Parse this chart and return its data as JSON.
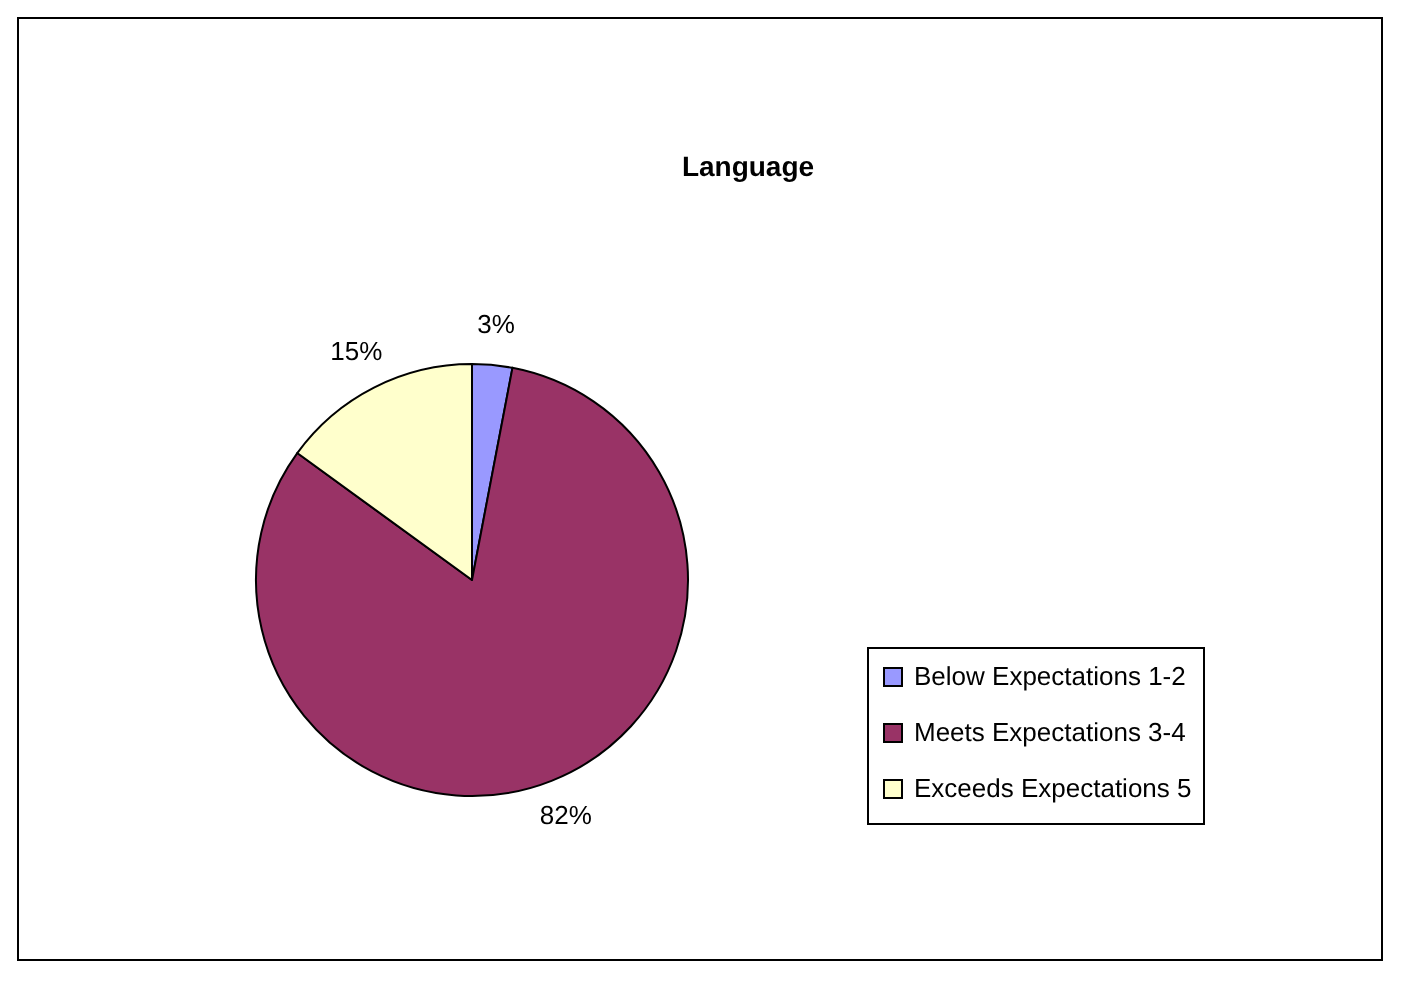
{
  "chart_data": {
    "type": "pie",
    "title": "Language",
    "categories": [
      "Below Expectations 1-2",
      "Meets Expectations 3-4",
      "Exceeds Expectations 5"
    ],
    "values": [
      3,
      82,
      15
    ],
    "colors": [
      "#9999ff",
      "#993366",
      "#ffffcc"
    ],
    "value_labels": [
      "3%",
      "82%",
      "15%"
    ],
    "legend": "right"
  }
}
